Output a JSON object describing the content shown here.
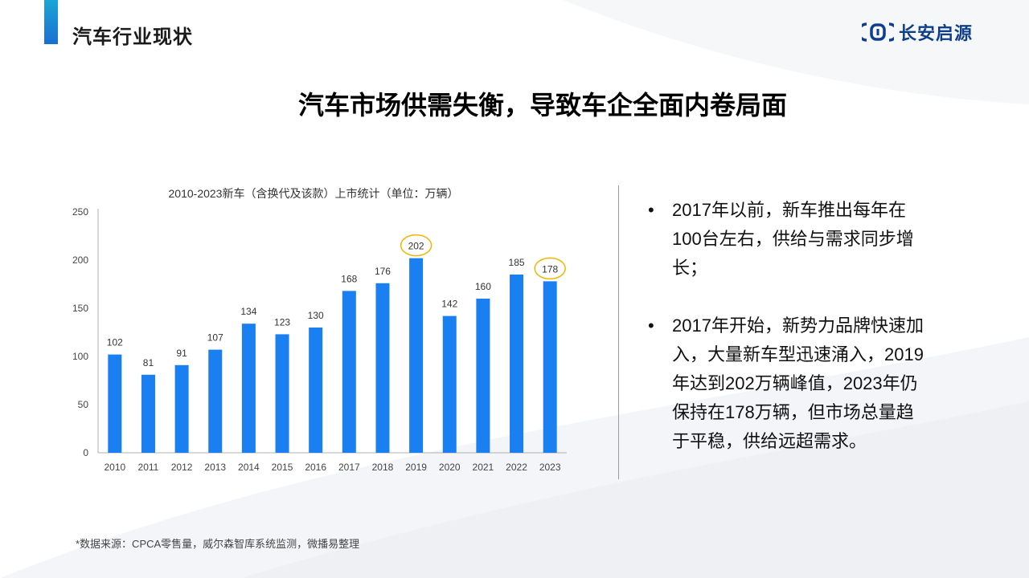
{
  "header": {
    "section_title": "汽车行业现状",
    "logo_text": "长安启源",
    "brand_color": "#0f3f8c",
    "accent_color": "#1a8fd6"
  },
  "headline": "汽车市场供需失衡，导致车企全面内卷局面",
  "chart_data": {
    "type": "bar",
    "title": "2010-2023新车（含换代及该款）上市统计（单位：万辆）",
    "categories": [
      "2010",
      "2011",
      "2012",
      "2013",
      "2014",
      "2015",
      "2016",
      "2017",
      "2018",
      "2019",
      "2020",
      "2021",
      "2022",
      "2023"
    ],
    "values": [
      102,
      81,
      91,
      107,
      134,
      123,
      130,
      168,
      176,
      202,
      142,
      160,
      185,
      178
    ],
    "data_labels": [
      "102",
      "81",
      "91",
      "107",
      "134",
      "123",
      "130",
      "168",
      "176",
      "202",
      "142",
      "160",
      "185",
      "178"
    ],
    "yticks": [
      "0",
      "50",
      "100",
      "150",
      "200",
      "250"
    ],
    "ylim": [
      0,
      250
    ],
    "highlighted": [
      "2019",
      "2023"
    ],
    "bar_color": "#1a7ff0",
    "highlight_color": "#f2b400",
    "grid": false,
    "legend": "none",
    "xlabel": "",
    "ylabel": ""
  },
  "bullets": [
    {
      "marker": "•",
      "text": "2017年以前，新车推出每年在100台左右，供给与需求同步增长；"
    },
    {
      "marker": "•",
      "text": "2017年开始，新势力品牌快速加入，大量新车型迅速涌入，2019年达到202万辆峰值，2023年仍保持在178万辆，但市场总量趋于平稳，供给远超需求。"
    }
  ],
  "footer": {
    "source": "*数据来源：CPCA零售量，威尔森智库系统监测，微播易整理"
  }
}
